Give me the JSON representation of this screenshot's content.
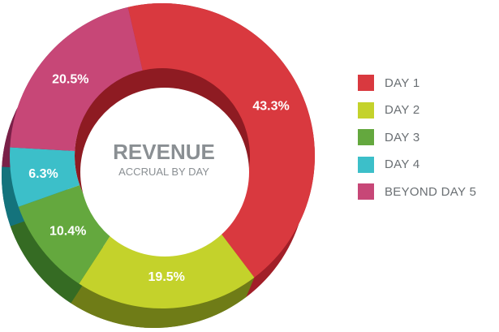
{
  "chart_data": {
    "type": "pie",
    "title": "REVENUE",
    "subtitle": "ACCRUAL BY DAY",
    "categories": [
      "DAY 1",
      "DAY 2",
      "DAY 3",
      "DAY 4",
      "BEYOND DAY 5"
    ],
    "values": [
      43.3,
      19.5,
      10.4,
      6.3,
      20.5
    ],
    "value_labels": [
      "43.3%",
      "19.5%",
      "10.4%",
      "6.3%",
      "20.5%"
    ],
    "colors": [
      "#d9393f",
      "#c4d22b",
      "#64a83e",
      "#3cbfc9",
      "#c74777"
    ],
    "side_colors": [
      "#a11f28",
      "#6f7c17",
      "#356b23",
      "#14737c",
      "#7a2048"
    ],
    "legend_position": "right",
    "style": "3d-donut"
  }
}
